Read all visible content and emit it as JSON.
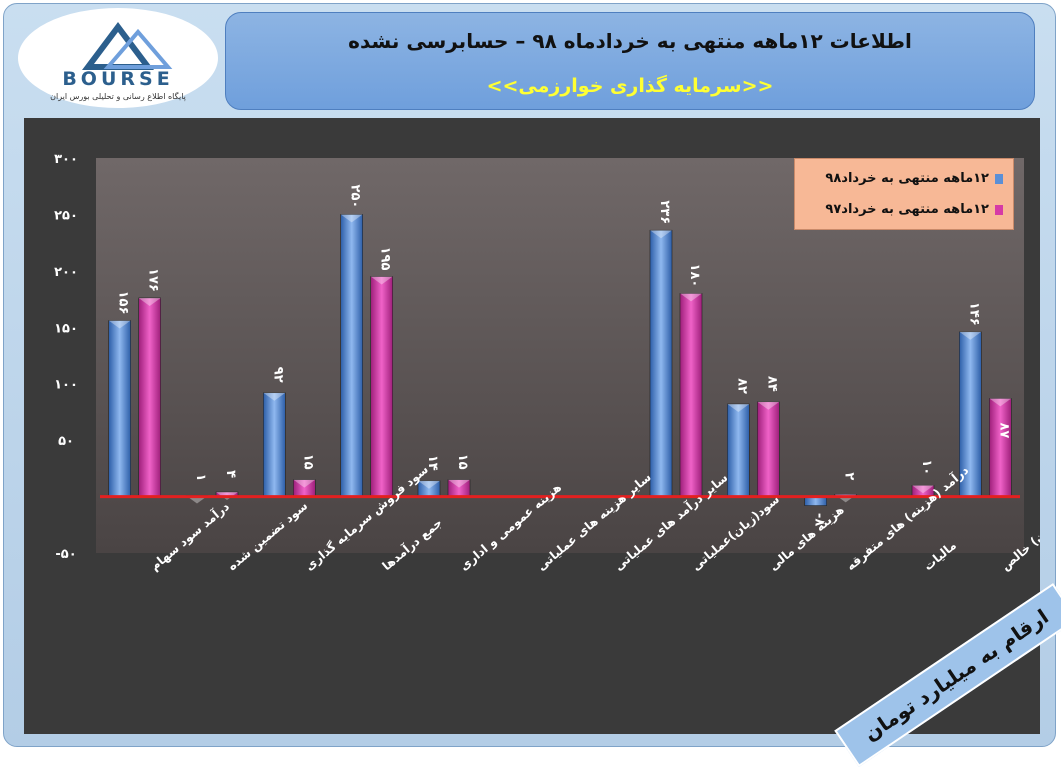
{
  "header": {
    "title": "اطلاعات ۱۲ماهه منتهی به خردادماه ۹۸ – حسابرسی نشده",
    "subtitle": "<<سرمایه گذاری خوارزمی>>"
  },
  "logo": {
    "text": "BOURSE",
    "sub": "پایگاه اطلاع رسانی و تحلیلی بورس ایران"
  },
  "units_label": "ارقام به میلیارد تومان",
  "colors": {
    "series1": "#5b8fd6",
    "series2": "#d63aa6",
    "zero_line": "#e32020",
    "plot_bg": "#3a3a3a",
    "text": "#ffffff"
  },
  "chart_data": {
    "type": "bar",
    "categories": [
      "درآمد سود سهام",
      "سود تضمین شده",
      "سود فروش سرمایه گذاری",
      "جمع درآمدها",
      "هزینه عمومی و اداری",
      "سایر هزینه های عملیاتی",
      "سایر درآمد های عملیاتی",
      "سود(زیان)عملیاتی",
      "هزینه های مالی",
      "درآمد (هزینه) های متفرقه",
      "مالیات",
      "سود(زیان) خالص"
    ],
    "series": [
      {
        "name": "۱۲ماهه منتهی به خرداد۹۸",
        "values": [
          156,
          1,
          92,
          250,
          14,
          0,
          0,
          236,
          82,
          8,
          0,
          146
        ],
        "labels": [
          "۱۵۶",
          "۱",
          "۹۲",
          "۲۵۰",
          "۱۴",
          "",
          "",
          "۲۳۶",
          "۸۲",
          "-۸",
          "",
          "۱۴۶"
        ]
      },
      {
        "name": "۱۲ماهه منتهی به خرداد۹۷",
        "values": [
          176,
          4,
          15,
          195,
          15,
          0,
          0,
          180,
          84,
          2,
          10,
          87
        ],
        "labels": [
          "۱۷۶",
          "۴",
          "۱۵",
          "۱۹۵",
          "۱۵",
          "",
          "",
          "۱۸۰",
          "۸۴",
          "۲",
          "۱۰",
          "۸۷"
        ]
      }
    ],
    "negative_flags": [
      [
        false,
        false,
        false,
        false,
        false,
        false,
        false,
        false,
        false,
        true,
        false,
        false
      ],
      [
        false,
        false,
        false,
        false,
        false,
        false,
        false,
        false,
        false,
        false,
        false,
        false
      ]
    ],
    "ylim": [
      -50,
      300
    ],
    "yticks": [
      -50,
      0,
      50,
      100,
      150,
      200,
      250,
      300
    ],
    "ytick_labels": [
      "-۵۰",
      "",
      "۵۰",
      "۱۰۰",
      "۱۵۰",
      "۲۰۰",
      "۲۵۰",
      "۳۰۰"
    ],
    "legend_position": "top-right"
  }
}
